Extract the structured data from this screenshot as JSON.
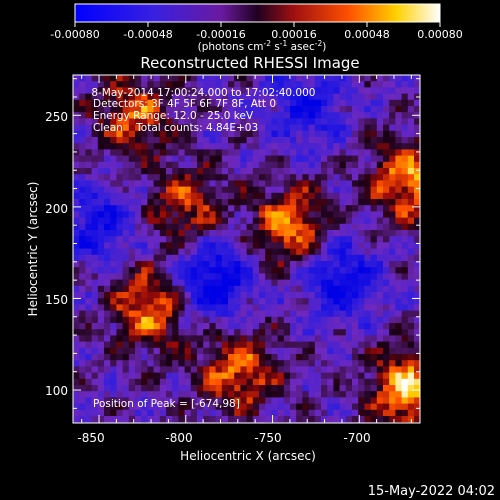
{
  "colorbar": {
    "tick_labels": [
      "-0.00080",
      "-0.00048",
      "-0.00016",
      "0.00016",
      "0.00048",
      "0.00080"
    ],
    "range": [
      -0.0008,
      0.0008
    ],
    "units_main": "(photons cm",
    "units_sup1": "-2",
    "units_mid1": " s",
    "units_sup2": "-1",
    "units_mid2": " asec",
    "units_sup3": "-2",
    "units_end": ")",
    "colormap": "blue-purple-red-yellow-white"
  },
  "chart_data": {
    "type": "heatmap",
    "title": "Reconstructed RHESSI Image",
    "xlabel": "Heliocentric X (arcsec)",
    "ylabel": "Heliocentric Y (arcsec)",
    "xlim": [
      -865,
      -665
    ],
    "ylim": [
      82,
      272
    ],
    "x_ticks": [
      -850,
      -800,
      -750,
      -700
    ],
    "y_ticks": [
      100,
      150,
      200,
      250
    ],
    "x_tick_labels": [
      "-850",
      "-800",
      "-750",
      "-700"
    ],
    "y_tick_labels": [
      "100",
      "150",
      "200",
      "250"
    ],
    "annotations": [
      " 8-May-2014 17:00:24.000 to 17:02:40.000",
      "Detectors: 3F 4F 5F 6F 7F 8F, Att 0",
      "Energy Range: 12.0 - 25.0 keV",
      "Clean    Total counts: 4.84E+03"
    ],
    "peak_label": "Position of Peak = [-674,98]",
    "peak_position": [
      -674,
      98
    ],
    "hot_regions": [
      {
        "x": -672,
        "y": 100,
        "level": 1.0
      },
      {
        "x": -672,
        "y": 215,
        "level": 0.9
      },
      {
        "x": -740,
        "y": 190,
        "level": 0.85
      },
      {
        "x": -820,
        "y": 145,
        "level": 0.85
      },
      {
        "x": -770,
        "y": 110,
        "level": 0.8
      },
      {
        "x": -830,
        "y": 250,
        "level": 0.7
      },
      {
        "x": -800,
        "y": 200,
        "level": 0.65
      }
    ],
    "cold_regions": [
      {
        "x": -785,
        "y": 160,
        "level": -0.9
      },
      {
        "x": -710,
        "y": 160,
        "level": -0.7
      },
      {
        "x": -850,
        "y": 190,
        "level": -0.6
      },
      {
        "x": -730,
        "y": 255,
        "level": -0.6
      }
    ]
  },
  "footer": {
    "timestamp": "15-May-2022 04:02"
  }
}
